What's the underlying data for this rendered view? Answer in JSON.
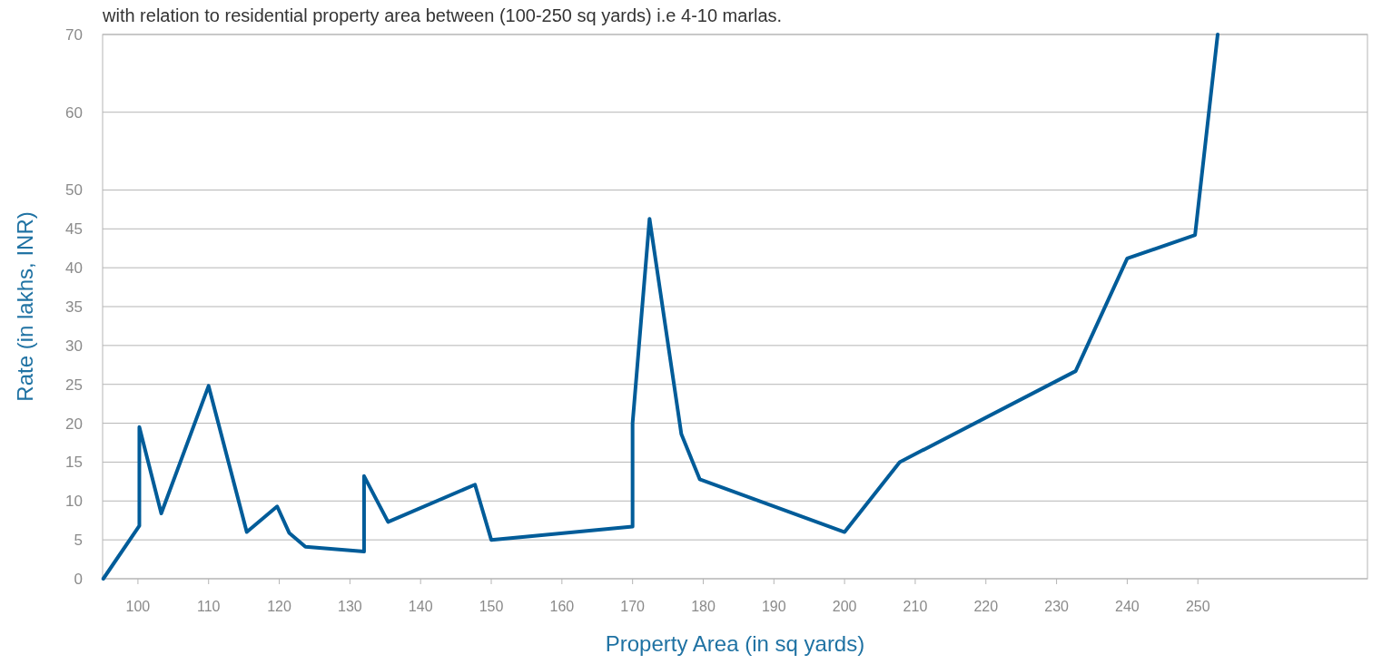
{
  "chart_data": {
    "type": "line",
    "title": "with relation to residential property area between (100-250 sq yards) i.e 4-10 marlas.",
    "xlabel": "Property Area (in sq yards)",
    "ylabel": "Rate (in lakhs, INR)",
    "x": [
      95.1,
      100.2,
      100.2,
      103.3,
      110,
      115.4,
      119.7,
      121.4,
      123.7,
      132,
      132,
      135.4,
      147.7,
      150,
      170,
      170,
      172.4,
      176.9,
      179.5,
      200,
      207.8,
      232.7,
      240,
      249.6,
      252.8
    ],
    "series": [
      {
        "color": "#005c99",
        "values": [
          0,
          6.8,
          19.5,
          8.4,
          24.8,
          6.0,
          9.3,
          5.9,
          4.1,
          3.5,
          13.2,
          7.3,
          12.1,
          5.0,
          6.7,
          20,
          46.3,
          18.6,
          12.8,
          6.0,
          15,
          26.7,
          41.2,
          44.2,
          70
        ]
      }
    ],
    "xlim": [
      95,
      274
    ],
    "xticks": [
      100,
      110,
      120,
      130,
      140,
      150,
      160,
      170,
      180,
      190,
      200,
      210,
      220,
      230,
      240,
      250
    ],
    "ylim": [
      0,
      70
    ],
    "yticks": [
      0,
      5,
      10,
      15,
      20,
      25,
      30,
      35,
      40,
      45,
      50,
      60,
      70
    ],
    "grid": "y"
  }
}
